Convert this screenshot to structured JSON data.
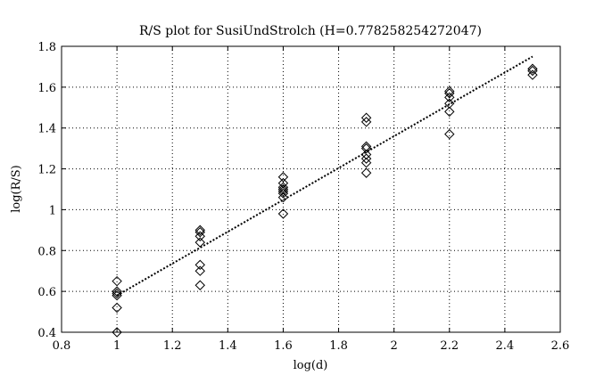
{
  "chart_data": {
    "type": "scatter",
    "title": "R/S plot for SusiUndStrolch (H=0.778258254272047)",
    "xlabel": "log(d)",
    "ylabel": "log(R/S)",
    "xlim": [
      0.8,
      2.6
    ],
    "ylim": [
      0.4,
      1.8
    ],
    "xticks": [
      0.8,
      1,
      1.2,
      1.4,
      1.6,
      1.8,
      2,
      2.2,
      2.4,
      2.6
    ],
    "yticks": [
      0.4,
      0.6,
      0.8,
      1,
      1.2,
      1.4,
      1.6,
      1.8
    ],
    "xtick_labels": [
      "0.8",
      "1",
      "1.2",
      "1.4",
      "1.6",
      "1.8",
      "2",
      "2.2",
      "2.4",
      "2.6"
    ],
    "ytick_labels": [
      "0.4",
      "0.6",
      "0.8",
      "1",
      "1.2",
      "1.4",
      "1.6",
      "1.8"
    ],
    "grid": true,
    "marker": "diamond",
    "marker_color": "#000000",
    "fit_line_style": "dotted",
    "fit_line_color": "#000000",
    "points": [
      {
        "x": 1.0,
        "y": 0.65
      },
      {
        "x": 1.0,
        "y": 0.6
      },
      {
        "x": 1.0,
        "y": 0.59
      },
      {
        "x": 1.0,
        "y": 0.58
      },
      {
        "x": 1.0,
        "y": 0.52
      },
      {
        "x": 1.0,
        "y": 0.4
      },
      {
        "x": 1.3,
        "y": 0.9
      },
      {
        "x": 1.3,
        "y": 0.89
      },
      {
        "x": 1.3,
        "y": 0.87
      },
      {
        "x": 1.3,
        "y": 0.84
      },
      {
        "x": 1.3,
        "y": 0.73
      },
      {
        "x": 1.3,
        "y": 0.7
      },
      {
        "x": 1.3,
        "y": 0.63
      },
      {
        "x": 1.6,
        "y": 1.16
      },
      {
        "x": 1.6,
        "y": 1.13
      },
      {
        "x": 1.6,
        "y": 1.11
      },
      {
        "x": 1.6,
        "y": 1.1
      },
      {
        "x": 1.6,
        "y": 1.09
      },
      {
        "x": 1.6,
        "y": 1.08
      },
      {
        "x": 1.6,
        "y": 1.06
      },
      {
        "x": 1.6,
        "y": 0.98
      },
      {
        "x": 1.9,
        "y": 1.45
      },
      {
        "x": 1.9,
        "y": 1.43
      },
      {
        "x": 1.9,
        "y": 1.31
      },
      {
        "x": 1.9,
        "y": 1.3
      },
      {
        "x": 1.9,
        "y": 1.27
      },
      {
        "x": 1.9,
        "y": 1.25
      },
      {
        "x": 1.9,
        "y": 1.23
      },
      {
        "x": 1.9,
        "y": 1.18
      },
      {
        "x": 2.2,
        "y": 1.58
      },
      {
        "x": 2.2,
        "y": 1.57
      },
      {
        "x": 2.2,
        "y": 1.55
      },
      {
        "x": 2.2,
        "y": 1.52
      },
      {
        "x": 2.2,
        "y": 1.48
      },
      {
        "x": 2.2,
        "y": 1.37
      },
      {
        "x": 2.5,
        "y": 1.69
      },
      {
        "x": 2.5,
        "y": 1.68
      },
      {
        "x": 2.5,
        "y": 1.66
      }
    ],
    "fit_line": {
      "x": [
        1.0,
        2.5
      ],
      "y": [
        0.58,
        1.75
      ]
    }
  }
}
